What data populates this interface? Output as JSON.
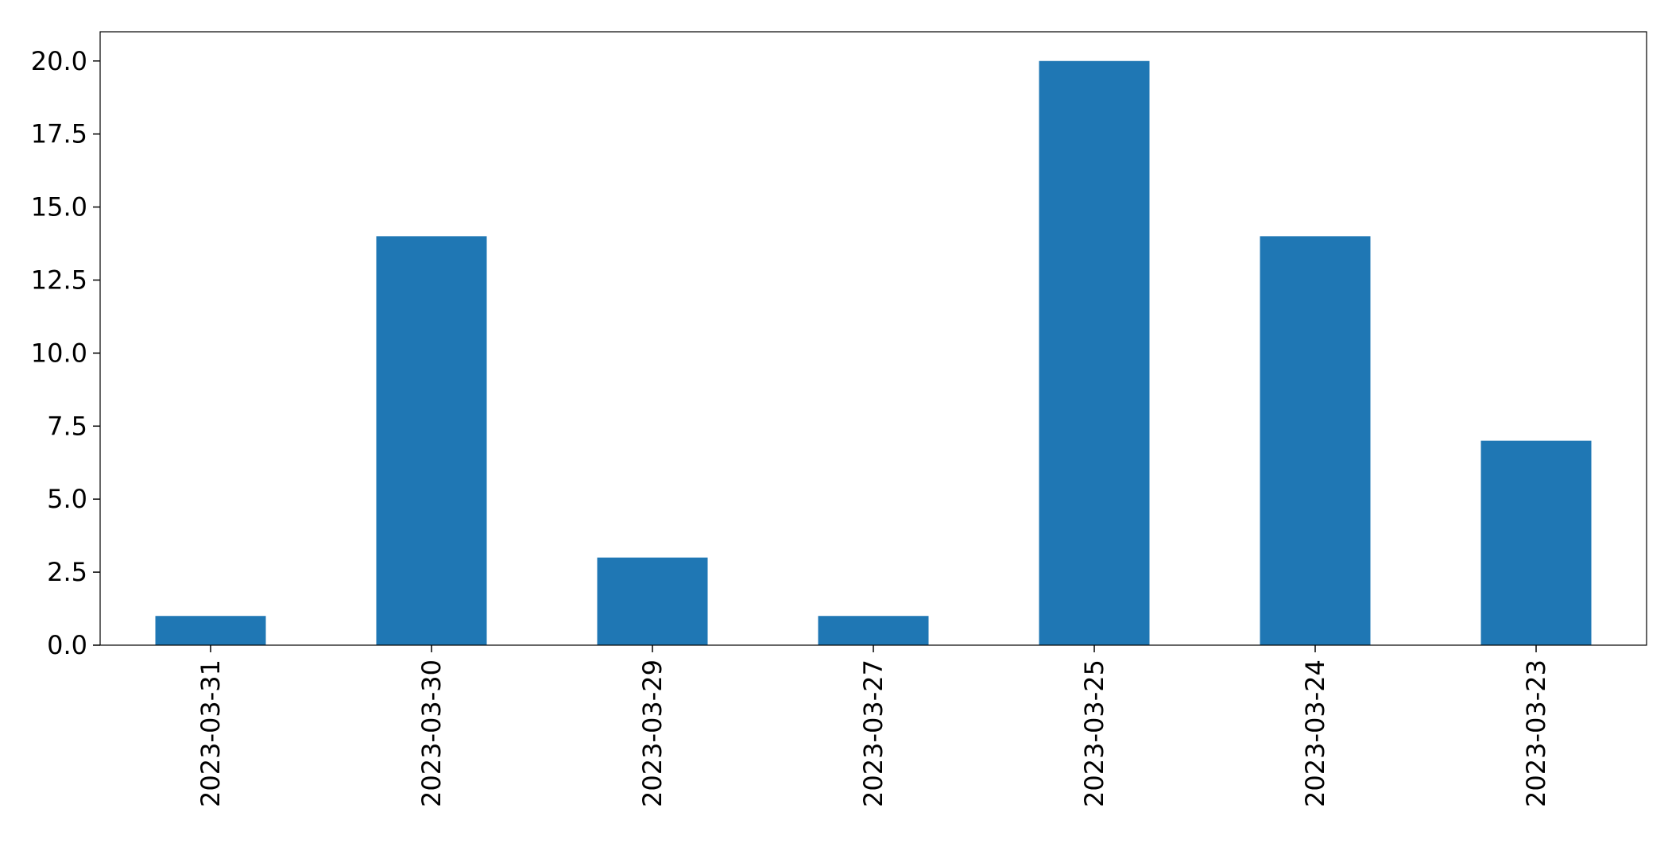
{
  "chart_data": {
    "type": "bar",
    "categories": [
      "2023-03-31",
      "2023-03-30",
      "2023-03-29",
      "2023-03-27",
      "2023-03-25",
      "2023-03-24",
      "2023-03-23"
    ],
    "values": [
      1,
      14,
      3,
      1,
      20,
      14,
      7
    ],
    "ylim": [
      0,
      21
    ],
    "yticks": [
      "0.0",
      "2.5",
      "5.0",
      "7.5",
      "10.0",
      "12.5",
      "15.0",
      "17.5",
      "20.0"
    ],
    "grid": false,
    "legend": "none",
    "bar_color": "#1f77b4"
  }
}
